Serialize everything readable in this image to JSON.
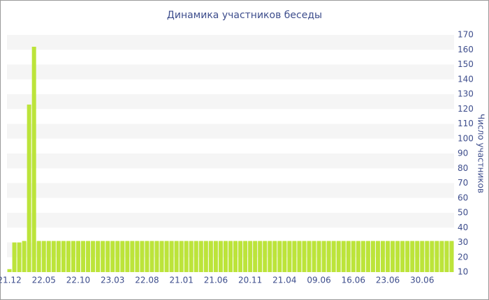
{
  "chart_data": {
    "type": "bar",
    "title": "Динамика участников беседы",
    "y_axis_label": "Число участников",
    "categories": [
      "21.12",
      null,
      null,
      null,
      null,
      null,
      null,
      "22.05",
      null,
      null,
      null,
      null,
      null,
      null,
      "22.10",
      null,
      null,
      null,
      null,
      null,
      null,
      "23.03",
      null,
      null,
      null,
      null,
      null,
      null,
      "22.08",
      null,
      null,
      null,
      null,
      null,
      null,
      "21.01",
      null,
      null,
      null,
      null,
      null,
      null,
      "21.06",
      null,
      null,
      null,
      null,
      null,
      null,
      "20.11",
      null,
      null,
      null,
      null,
      null,
      null,
      "21.04",
      null,
      null,
      null,
      null,
      null,
      null,
      "09.06",
      null,
      null,
      null,
      null,
      null,
      null,
      "16.06",
      null,
      null,
      null,
      null,
      null,
      null,
      "23.06",
      null,
      null,
      null,
      null,
      null,
      null,
      "30.06",
      null,
      null,
      null,
      null,
      null,
      null
    ],
    "values": [
      12,
      30,
      30,
      31,
      123,
      162,
      31,
      31,
      31,
      31,
      31,
      31,
      31,
      31,
      31,
      31,
      31,
      31,
      31,
      31,
      31,
      31,
      31,
      31,
      31,
      31,
      31,
      31,
      31,
      31,
      31,
      31,
      31,
      31,
      31,
      31,
      31,
      31,
      31,
      31,
      31,
      31,
      31,
      31,
      31,
      31,
      31,
      31,
      31,
      31,
      31,
      31,
      31,
      31,
      31,
      31,
      31,
      31,
      31,
      31,
      31,
      31,
      31,
      31,
      31,
      31,
      31,
      31,
      31,
      31,
      31,
      31,
      31,
      31,
      31,
      31,
      31,
      31,
      31,
      31,
      31,
      31,
      31,
      31,
      31,
      31,
      31,
      31,
      31,
      31,
      31
    ],
    "color": "#bce43a",
    "ylim": [
      10,
      170
    ],
    "yticks": [
      10,
      20,
      30,
      40,
      50,
      60,
      70,
      80,
      90,
      100,
      110,
      120,
      130,
      140,
      150,
      160,
      170
    ],
    "y_axis_side": "right",
    "grid": "bands"
  }
}
